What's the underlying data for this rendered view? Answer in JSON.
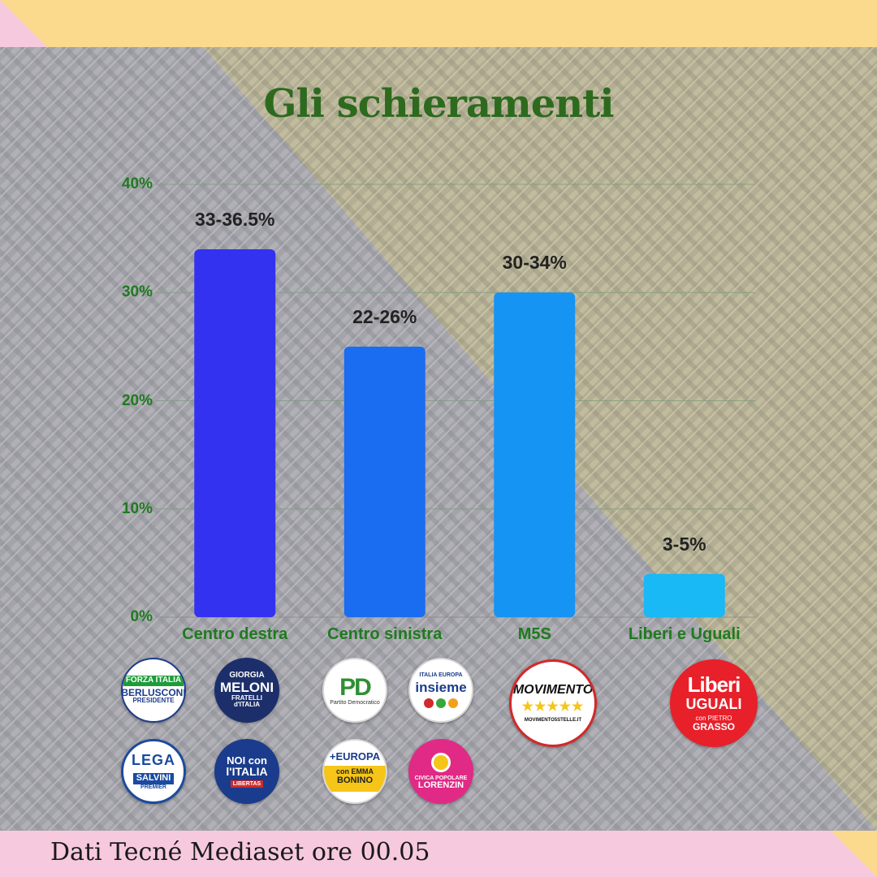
{
  "title": "Gli schieramenti",
  "source": "Dati Tecné Mediaset ore 00.05",
  "chart_data": {
    "type": "bar",
    "categories": [
      "Centro destra",
      "Centro sinistra",
      "M5S",
      "Liberi e Uguali"
    ],
    "values": [
      34,
      25,
      30,
      4
    ],
    "value_labels": [
      "33-36.5%",
      "22-26%",
      "30-34%",
      "3-5%"
    ],
    "colors": [
      "#3232f0",
      "#1a6cf0",
      "#1594f4",
      "#18b9f4"
    ],
    "ylim": [
      0,
      40
    ],
    "yticks": [
      "0%",
      "10%",
      "20%",
      "30%",
      "40%"
    ],
    "grid": true
  },
  "logos": {
    "forza_italia": {
      "line1": "FORZA ITALIA",
      "line2": "BERLUSCONI",
      "line3": "PRESIDENTE"
    },
    "fratelli_italia": {
      "line1": "GIORGIA",
      "line2": "MELONI",
      "line3": "FRATELLI d'ITALIA"
    },
    "lega": {
      "line1": "LEGA",
      "line2": "SALVINI",
      "line3": "PREMIER"
    },
    "noi_italia": {
      "line1": "NOI con",
      "line2": "l'ITALIA",
      "line3": "LIBERTAS"
    },
    "pd": {
      "line1": "PD",
      "line2": "Partito Democratico"
    },
    "insieme": {
      "line1": "ITALIA EUROPA",
      "line2": "insieme"
    },
    "piu_europa": {
      "line1": "+EUROPA",
      "line2": "con EMMA",
      "line3": "BONINO"
    },
    "civica_popolare": {
      "line1": "CIVICA POPOLARE",
      "line2": "LORENZIN"
    },
    "movimento": {
      "line1": "MOVIMENTO",
      "line2": "★★★★★",
      "line3": "MOVIMENTO5STELLE.IT"
    },
    "liberi_uguali": {
      "line1": "Liberi",
      "line2": "UGUALI",
      "line3": "con PIETRO",
      "line4": "GRASSO"
    }
  }
}
